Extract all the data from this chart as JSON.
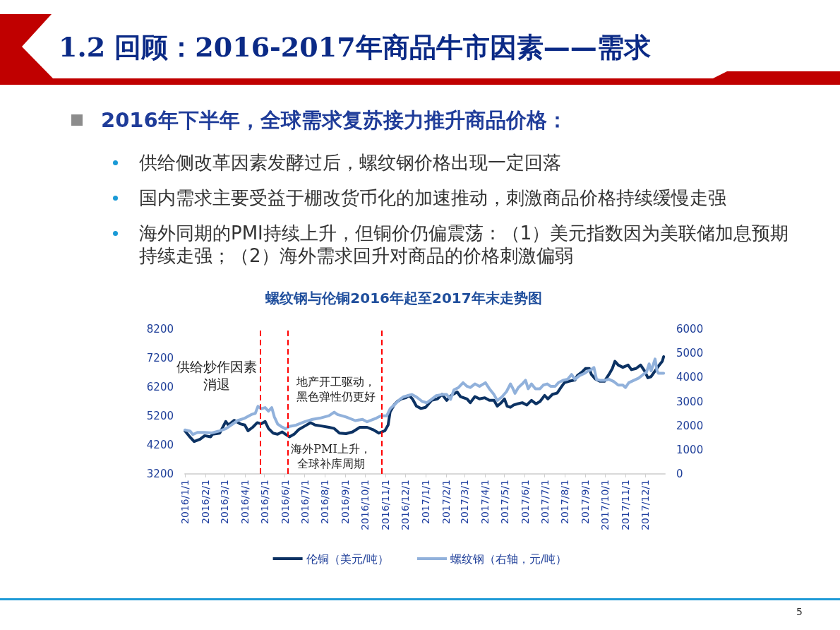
{
  "chart_data": {
    "type": "line",
    "title": "1.2 回顾：2016-2017年商品牛市因素——需求",
    "subtitle": "螺纹钢与伦铜2016年起至2017年末走势图",
    "annotations": [
      "2016年下半年，全球需求复苏接力推升商品价格：",
      "供给侧改革因素发酵过后，螺纹钢价格出现一定回落",
      "国内需求主要受益于棚改货币化的加速推动，刺激商品价格持续缓慢走强",
      "海外同期的PMI持续上升，但铜价仍偏震荡：（1）美元指数因为美联储加息预期持续走强；（2）海外需求回升对商品的价格刺激偏弱",
      "5",
      "供给炒作因素消退",
      "地产开工驱动，黑色弹性仍更好",
      "海外PMI上升，全球补库周期"
    ],
    "xlim": [
      "2016-01-01",
      "2017-12-31"
    ],
    "xticks": [
      {
        "value": "2016-01-01",
        "label": "2016/1/1"
      },
      {
        "value": "2016-02-01",
        "label": "2016/2/1"
      },
      {
        "value": "2016-03-01",
        "label": "2016/3/1"
      },
      {
        "value": "2016-04-01",
        "label": "2016/4/1"
      },
      {
        "value": "2016-05-01",
        "label": "2016/5/1"
      },
      {
        "value": "2016-06-01",
        "label": "2016/6/1"
      },
      {
        "value": "2016-07-01",
        "label": "2016/7/1"
      },
      {
        "value": "2016-08-01",
        "label": "2016/8/1"
      },
      {
        "value": "2016-09-01",
        "label": "2016/9/1"
      },
      {
        "value": "2016-10-01",
        "label": "2016/10/1"
      },
      {
        "value": "2016-11-01",
        "label": "2016/11/1"
      },
      {
        "value": "2016-12-01",
        "label": "2016/12/1"
      },
      {
        "value": "2017-01-01",
        "label": "2017/1/1"
      },
      {
        "value": "2017-02-01",
        "label": "2017/2/1"
      },
      {
        "value": "2017-03-01",
        "label": "2017/3/1"
      },
      {
        "value": "2017-04-01",
        "label": "2017/4/1"
      },
      {
        "value": "2017-05-01",
        "label": "2017/5/1"
      },
      {
        "value": "2017-06-01",
        "label": "2017/6/1"
      },
      {
        "value": "2017-07-01",
        "label": "2017/7/1"
      },
      {
        "value": "2017-08-01",
        "label": "2017/8/1"
      },
      {
        "value": "2017-09-01",
        "label": "2017/9/1"
      },
      {
        "value": "2017-10-01",
        "label": "2017/10/1"
      },
      {
        "value": "2017-11-01",
        "label": "2017/11/1"
      },
      {
        "value": "2017-12-01",
        "label": "2017/12/1"
      }
    ],
    "ylim": [
      3200,
      8200
    ],
    "yticks": [
      3200,
      4200,
      5200,
      6200,
      7200,
      8200
    ],
    "y2lim": [
      0,
      6000
    ],
    "y2ticks": [
      0,
      1000,
      2000,
      3000,
      4000,
      5000,
      6000
    ],
    "grid": false,
    "legend": "bottom",
    "marker": "none",
    "line_style": "solid",
    "ref_lines": [
      {
        "axis": "x",
        "value": "2016-04-25",
        "color": "#ff0000",
        "line_style": "dashed"
      },
      {
        "axis": "x",
        "value": "2016-06-05",
        "color": "#ff0000",
        "line_style": "dashed"
      },
      {
        "axis": "x",
        "value": "2016-10-26",
        "color": "#ff0000",
        "line_style": "dashed"
      }
    ],
    "series": [
      {
        "name": "伦铜（美元/吨）",
        "color": "#0c3263",
        "x": [
          "2016-01-01",
          "2016-01-08",
          "2016-01-15",
          "2016-01-24",
          "2016-01-31",
          "2016-02-09",
          "2016-02-12",
          "2016-02-23",
          "2016-03-03",
          "2016-03-07",
          "2016-03-16",
          "2016-03-25",
          "2016-04-01",
          "2016-04-06",
          "2016-04-13",
          "2016-04-20",
          "2016-04-26",
          "2016-05-02",
          "2016-05-07",
          "2016-05-14",
          "2016-05-21",
          "2016-05-28",
          "2016-06-02",
          "2016-06-08",
          "2016-06-15",
          "2016-06-22",
          "2016-07-01",
          "2016-07-10",
          "2016-07-17",
          "2016-07-28",
          "2016-08-07",
          "2016-08-15",
          "2016-08-23",
          "2016-09-02",
          "2016-09-12",
          "2016-09-23",
          "2016-10-04",
          "2016-10-13",
          "2016-10-22",
          "2016-10-31",
          "2016-11-05",
          "2016-11-08",
          "2016-11-14",
          "2016-11-19",
          "2016-11-25",
          "2016-12-02",
          "2016-12-07",
          "2016-12-12",
          "2016-12-18",
          "2016-12-25",
          "2017-01-01",
          "2017-01-10",
          "2017-01-19",
          "2017-01-26",
          "2017-02-02",
          "2017-02-09",
          "2017-02-18",
          "2017-02-23",
          "2017-03-05",
          "2017-03-10",
          "2017-03-17",
          "2017-03-24",
          "2017-04-01",
          "2017-04-08",
          "2017-04-15",
          "2017-04-20",
          "2017-04-26",
          "2017-05-01",
          "2017-05-05",
          "2017-05-10",
          "2017-05-15",
          "2017-05-21",
          "2017-05-28",
          "2017-06-04",
          "2017-06-11",
          "2017-06-18",
          "2017-06-24",
          "2017-07-01",
          "2017-07-06",
          "2017-07-13",
          "2017-07-20",
          "2017-07-26",
          "2017-07-31",
          "2017-08-07",
          "2017-08-16",
          "2017-08-20",
          "2017-08-27",
          "2017-09-01",
          "2017-09-07",
          "2017-09-10",
          "2017-09-16",
          "2017-09-23",
          "2017-09-30",
          "2017-10-07",
          "2017-10-12",
          "2017-10-16",
          "2017-10-21",
          "2017-10-28",
          "2017-11-05",
          "2017-11-10",
          "2017-11-17",
          "2017-11-24",
          "2017-11-30",
          "2017-12-05",
          "2017-12-10",
          "2017-12-16",
          "2017-12-21",
          "2017-12-27",
          "2017-12-29"
        ],
        "values": [
          4690,
          4490,
          4320,
          4400,
          4520,
          4480,
          4570,
          4610,
          5010,
          4890,
          5050,
          4930,
          4890,
          4690,
          4810,
          4970,
          4930,
          5010,
          4770,
          4610,
          4570,
          4650,
          4570,
          4480,
          4570,
          4730,
          4850,
          4970,
          4890,
          4850,
          4810,
          4770,
          4610,
          4590,
          4650,
          4810,
          4810,
          4730,
          4610,
          4690,
          4890,
          5340,
          5580,
          5700,
          5790,
          5830,
          5910,
          5790,
          5540,
          5460,
          5500,
          5740,
          5790,
          5950,
          5740,
          5910,
          6030,
          5870,
          5790,
          5660,
          5870,
          5790,
          5830,
          5740,
          5740,
          5540,
          5660,
          5790,
          5540,
          5500,
          5580,
          5620,
          5660,
          5580,
          5740,
          5620,
          5700,
          5910,
          5790,
          5950,
          5990,
          6190,
          6350,
          6400,
          6440,
          6600,
          6720,
          6840,
          6840,
          6640,
          6480,
          6400,
          6400,
          6640,
          6840,
          7090,
          6960,
          6880,
          6960,
          6800,
          6840,
          6960,
          6760,
          6520,
          6560,
          6760,
          6920,
          7090,
          7250
        ]
      },
      {
        "name": "螺纹钢（右轴，元/吨）",
        "color": "#91b1db",
        "axis": "y2",
        "x": [
          "2016-01-01",
          "2016-01-09",
          "2016-01-13",
          "2016-01-20",
          "2016-01-31",
          "2016-02-11",
          "2016-02-21",
          "2016-03-03",
          "2016-03-11",
          "2016-03-21",
          "2016-04-01",
          "2016-04-11",
          "2016-04-17",
          "2016-04-21",
          "2016-04-26",
          "2016-05-02",
          "2016-05-07",
          "2016-05-12",
          "2016-05-16",
          "2016-05-21",
          "2016-05-26",
          "2016-06-02",
          "2016-06-08",
          "2016-06-18",
          "2016-07-01",
          "2016-07-13",
          "2016-07-24",
          "2016-08-07",
          "2016-08-15",
          "2016-08-20",
          "2016-09-02",
          "2016-09-16",
          "2016-09-27",
          "2016-10-04",
          "2016-10-18",
          "2016-10-25",
          "2016-11-03",
          "2016-11-08",
          "2016-11-16",
          "2016-11-23",
          "2016-11-28",
          "2016-12-04",
          "2016-12-11",
          "2016-12-18",
          "2016-12-27",
          "2017-01-03",
          "2017-01-10",
          "2017-01-17",
          "2017-01-26",
          "2017-02-02",
          "2017-02-08",
          "2017-02-13",
          "2017-02-20",
          "2017-02-27",
          "2017-03-05",
          "2017-03-10",
          "2017-03-17",
          "2017-03-24",
          "2017-04-02",
          "2017-04-08",
          "2017-04-15",
          "2017-04-20",
          "2017-04-27",
          "2017-05-04",
          "2017-05-10",
          "2017-05-13",
          "2017-05-17",
          "2017-05-22",
          "2017-05-28",
          "2017-06-02",
          "2017-06-06",
          "2017-06-11",
          "2017-06-17",
          "2017-06-24",
          "2017-06-29",
          "2017-07-05",
          "2017-07-10",
          "2017-07-17",
          "2017-07-22",
          "2017-07-29",
          "2017-08-05",
          "2017-08-11",
          "2017-08-16",
          "2017-08-23",
          "2017-08-31",
          "2017-09-05",
          "2017-09-10",
          "2017-09-14",
          "2017-09-18",
          "2017-09-23",
          "2017-09-30",
          "2017-10-07",
          "2017-10-14",
          "2017-10-21",
          "2017-10-28",
          "2017-11-01",
          "2017-11-06",
          "2017-11-14",
          "2017-11-21",
          "2017-11-28",
          "2017-12-03",
          "2017-12-07",
          "2017-12-10",
          "2017-12-16",
          "2017-12-19",
          "2017-12-21",
          "2017-12-29"
        ],
        "values": [
          1820,
          1770,
          1630,
          1720,
          1720,
          1700,
          1770,
          1870,
          2020,
          2210,
          2310,
          2460,
          2510,
          2800,
          2700,
          2750,
          2600,
          2750,
          2360,
          2070,
          1970,
          1870,
          1970,
          2020,
          2160,
          2260,
          2310,
          2410,
          2560,
          2460,
          2360,
          2210,
          2260,
          2160,
          2310,
          2410,
          2410,
          2700,
          2900,
          3090,
          3190,
          3240,
          3290,
          3190,
          3000,
          2950,
          3090,
          3240,
          3290,
          3290,
          3090,
          3480,
          3580,
          3780,
          3630,
          3580,
          3730,
          3630,
          3780,
          3530,
          3290,
          3040,
          3190,
          3410,
          3730,
          3580,
          3340,
          3580,
          3730,
          3880,
          3530,
          3730,
          3530,
          3530,
          3680,
          3730,
          3630,
          3630,
          3780,
          3880,
          3920,
          4120,
          3920,
          4070,
          4170,
          4270,
          4320,
          4410,
          3920,
          3880,
          3880,
          3920,
          3830,
          3680,
          3680,
          3580,
          3780,
          3880,
          3970,
          4120,
          4220,
          4560,
          4270,
          4760,
          4270,
          4170,
          4170
        ]
      }
    ]
  }
}
